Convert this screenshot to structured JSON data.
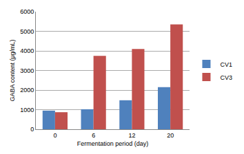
{
  "chart_data": {
    "type": "bar",
    "x_label": "Fermentation period (day)",
    "y_label": "GABA content (μg/mL)",
    "categories": [
      "0",
      "6",
      "12",
      "20"
    ],
    "series": [
      {
        "name": "CV1",
        "color": "#4f81bd",
        "values": [
          950,
          1020,
          1480,
          2150
        ]
      },
      {
        "name": "CV3",
        "color": "#c0504d",
        "values": [
          870,
          3750,
          4100,
          5350
        ]
      }
    ],
    "ylim": [
      0,
      6000
    ],
    "yticks": [
      0,
      1000,
      2000,
      3000,
      4000,
      5000,
      6000
    ],
    "grid": true,
    "legend": "right"
  }
}
